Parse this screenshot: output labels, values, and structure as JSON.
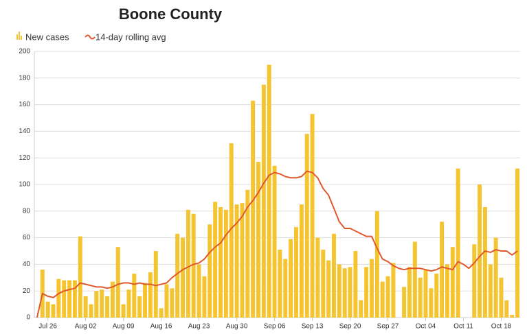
{
  "chart_data": {
    "type": "bar",
    "title": "Boone County",
    "categories": [
      null,
      null,
      "Jul 26",
      null,
      null,
      null,
      null,
      null,
      null,
      "Aug 02",
      null,
      null,
      null,
      null,
      null,
      null,
      "Aug 09",
      null,
      null,
      null,
      null,
      null,
      null,
      "Aug 16",
      null,
      null,
      null,
      null,
      null,
      null,
      "Aug 23",
      null,
      null,
      null,
      null,
      null,
      null,
      "Aug 30",
      null,
      null,
      null,
      null,
      null,
      null,
      "Sep 06",
      null,
      null,
      null,
      null,
      null,
      null,
      "Sep 13",
      null,
      null,
      null,
      null,
      null,
      null,
      "Sep 20",
      null,
      null,
      null,
      null,
      null,
      null,
      "Sep 27",
      null,
      null,
      null,
      null,
      null,
      null,
      "Oct 04",
      null,
      null,
      null,
      null,
      null,
      null,
      "Oct 11",
      null,
      null,
      null,
      null,
      null,
      null,
      "Oct 18",
      null,
      null,
      null
    ],
    "series": [
      {
        "name": "New cases",
        "type": "bar",
        "color": "#f5c431",
        "values": [
          0,
          36,
          12,
          10,
          29,
          28,
          28,
          28,
          61,
          16,
          10,
          20,
          21,
          16,
          27,
          53,
          10,
          21,
          33,
          16,
          26,
          34,
          50,
          7,
          25,
          22,
          63,
          60,
          81,
          78,
          40,
          31,
          70,
          87,
          83,
          81,
          131,
          85,
          86,
          96,
          163,
          117,
          175,
          190,
          114,
          51,
          44,
          59,
          68,
          85,
          138,
          153,
          60,
          51,
          43,
          63,
          40,
          37,
          38,
          50,
          13,
          38,
          44,
          80,
          27,
          31,
          41,
          0,
          23,
          38,
          57,
          30,
          36,
          22,
          33,
          72,
          40,
          53,
          112,
          0,
          0,
          55,
          100,
          83,
          40,
          60,
          30,
          13,
          2,
          112
        ]
      },
      {
        "name": "14-day rolling avg",
        "type": "line",
        "color": "#e0582c",
        "values": [
          0,
          18,
          16,
          15,
          18,
          20,
          21,
          22,
          26,
          25,
          24,
          23,
          23,
          22,
          23,
          25,
          26,
          26,
          25,
          26,
          25,
          25,
          24,
          25,
          26,
          30,
          33,
          36,
          38,
          40,
          41,
          44,
          49,
          53,
          56,
          62,
          67,
          71,
          76,
          83,
          88,
          94,
          101,
          107,
          109,
          108,
          106,
          105,
          105,
          106,
          110,
          109,
          105,
          97,
          92,
          82,
          72,
          67,
          67,
          65,
          63,
          61,
          61,
          52,
          44,
          42,
          39,
          37,
          36,
          37,
          37,
          37,
          36,
          35,
          36,
          38,
          37,
          36,
          42,
          40,
          37,
          41,
          46,
          50,
          49,
          51,
          50,
          50,
          47,
          50
        ]
      }
    ],
    "ylim": [
      0,
      200
    ],
    "yticks": [
      0,
      20,
      40,
      60,
      80,
      100,
      120,
      140,
      160,
      180,
      200
    ],
    "grid": true
  }
}
